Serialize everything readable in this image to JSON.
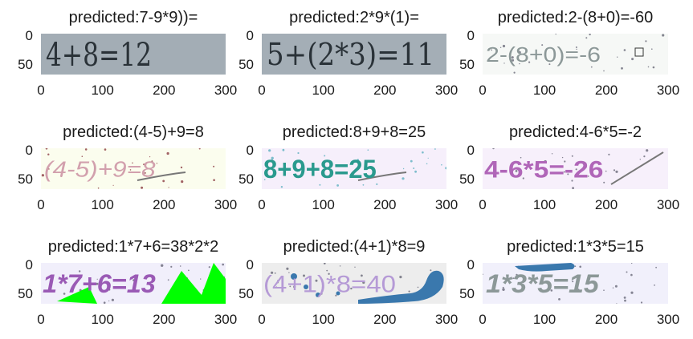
{
  "chart_data": [
    {
      "type": "image",
      "title": "predicted:7-9*9))=",
      "image_text": "4+8=12",
      "yticks": [
        "0",
        "50"
      ],
      "xticks": [
        "0",
        "100",
        "200",
        "300"
      ],
      "background": "#a3adb5"
    },
    {
      "type": "image",
      "title": "predicted:2*9*(1)=",
      "image_text": "5+(2*3)=11",
      "yticks": [
        "0",
        "50"
      ],
      "xticks": [
        "0",
        "100",
        "200",
        "300"
      ],
      "background": "#a4aeb6"
    },
    {
      "type": "image",
      "title": "predicted:2-(8+0)=-60",
      "image_text": "2-(8+0)=-6",
      "yticks": [
        "0",
        "50"
      ],
      "xticks": [
        "0",
        "100",
        "200",
        "300"
      ],
      "background": "#f6f8f6"
    },
    {
      "type": "image",
      "title": "predicted:(4-5)+9=8",
      "image_text": "(4-5)+9=8",
      "yticks": [
        "0",
        "50"
      ],
      "xticks": [
        "0",
        "100",
        "200",
        "300"
      ],
      "background": "#fbfdee"
    },
    {
      "type": "image",
      "title": "predicted:8+9+8=25",
      "image_text": "8+9+8=25",
      "yticks": [
        "0",
        "50"
      ],
      "xticks": [
        "0",
        "100",
        "200",
        "300"
      ],
      "background": "#f6effb"
    },
    {
      "type": "image",
      "title": "predicted:4-6*5=-2",
      "image_text": "4-6*5=-26",
      "yticks": [
        "0",
        "50"
      ],
      "xticks": [
        "0",
        "100",
        "200",
        "300"
      ],
      "background": "#f7f0fb"
    },
    {
      "type": "image",
      "title": "predicted:1*7+6=38*2*2",
      "image_text": "1*7+6=13",
      "yticks": [
        "0",
        "50"
      ],
      "xticks": [
        "0",
        "100",
        "200",
        "300"
      ],
      "background": "#f1effb"
    },
    {
      "type": "image",
      "title": "predicted:(4+1)*8=9",
      "image_text": "(4+1)*8=40",
      "yticks": [
        "0",
        "50"
      ],
      "xticks": [
        "0",
        "100",
        "200",
        "300"
      ],
      "background": "#ededed"
    },
    {
      "type": "image",
      "title": "predicted:1*3*5=15",
      "image_text": "1*3*5=15",
      "yticks": [
        "0",
        "50"
      ],
      "xticks": [
        "0",
        "100",
        "200",
        "300"
      ],
      "background": "#f1f0fb"
    }
  ],
  "colors": {
    "ink_dark": "#2a3238",
    "ink_gray": "#8c9898",
    "ink_pink": "#d2a0ad",
    "ink_teal": "#2a9a8e",
    "ink_purple": "#b066b8",
    "ink_violet": "#9a5ab5",
    "ink_lilac": "#b59ad6",
    "blob_blue": "#3a78ad",
    "scribble_green": "#00ff00"
  }
}
